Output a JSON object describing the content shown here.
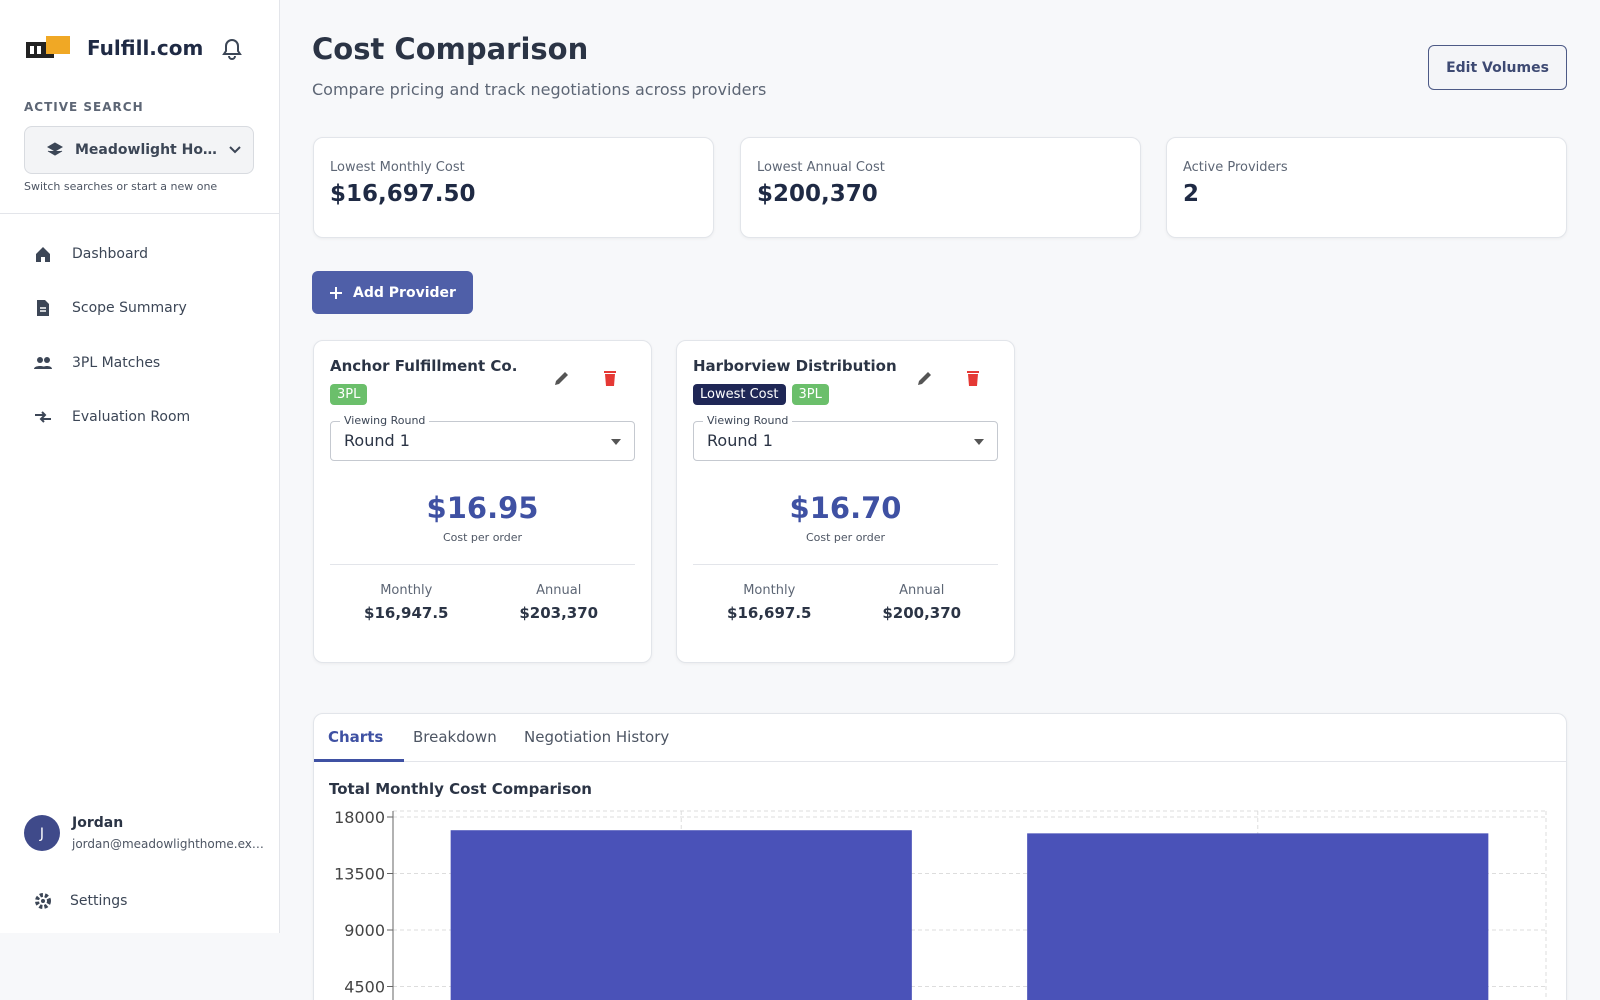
{
  "sidebar": {
    "brand": "Fulfill.com",
    "active_search_label": "ACTIVE SEARCH",
    "search_name": "Meadowlight Ho…",
    "search_hint": "Switch searches or start a new one",
    "nav": [
      "Dashboard",
      "Scope Summary",
      "3PL Matches",
      "Evaluation Room"
    ],
    "user": {
      "initial": "J",
      "name": "Jordan",
      "email": "jordan@meadowlighthome.ex…"
    },
    "settings": "Settings"
  },
  "header": {
    "title": "Cost Comparison",
    "subtitle": "Compare pricing and track negotiations across providers",
    "action": "Edit Volumes"
  },
  "stats": [
    {
      "label": "Lowest Monthly Cost",
      "value": "$16,697.50"
    },
    {
      "label": "Lowest Annual Cost",
      "value": "$200,370"
    },
    {
      "label": "Active Providers",
      "value": "2"
    }
  ],
  "add_provider": "Add Provider",
  "providers": [
    {
      "name": "Anchor Fulfillment Co.",
      "badges": [
        "3PL"
      ],
      "round_label": "Viewing Round",
      "round": "Round 1",
      "cost_per_order": "$16.95",
      "cost_per_order_label": "Cost per order",
      "monthly_label": "Monthly",
      "monthly": "$16,947.5",
      "annual_label": "Annual",
      "annual": "$203,370"
    },
    {
      "name": "Harborview Distribution",
      "badges": [
        "Lowest Cost",
        "3PL"
      ],
      "round_label": "Viewing Round",
      "round": "Round 1",
      "cost_per_order": "$16.70",
      "cost_per_order_label": "Cost per order",
      "monthly_label": "Monthly",
      "monthly": "$16,697.5",
      "annual_label": "Annual",
      "annual": "$200,370"
    }
  ],
  "tabs": [
    "Charts",
    "Breakdown",
    "Negotiation History"
  ],
  "chart_data": {
    "type": "bar",
    "title": "Total Monthly Cost Comparison",
    "categories": [
      null,
      null
    ],
    "values": [
      16947.5,
      16697.5
    ],
    "color": "#4a52b8",
    "ylim": [
      0,
      18000
    ],
    "yticks": [
      4500,
      9000,
      13500,
      18000
    ],
    "grid": true
  }
}
